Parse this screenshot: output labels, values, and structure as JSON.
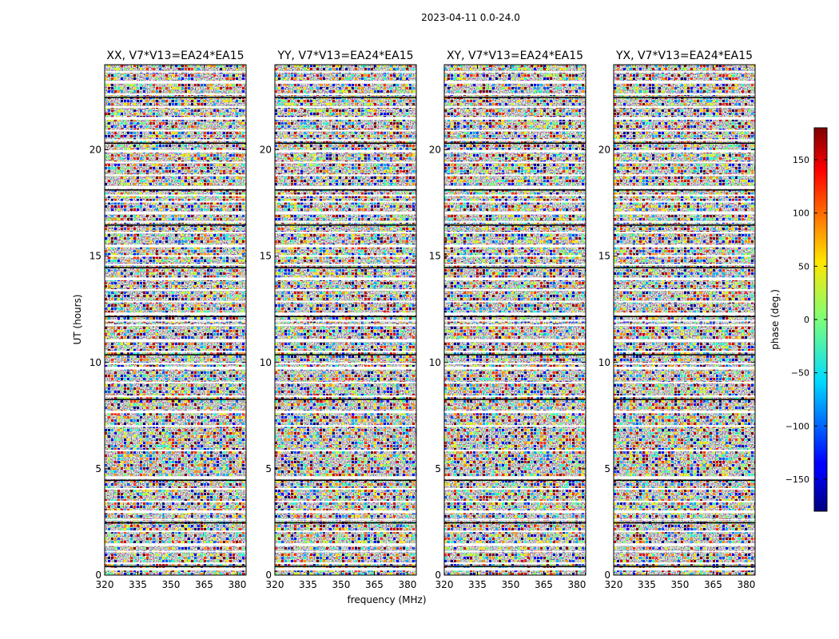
{
  "chart_data": {
    "type": "heatmap",
    "title": "2023-04-11 0.0-24.0",
    "xlabel": "frequency (MHz)",
    "ylabel": "UT (hours)",
    "xlim": [
      320,
      384
    ],
    "ylim": [
      0,
      24
    ],
    "x_ticks": [
      "320",
      "335",
      "350",
      "365",
      "380"
    ],
    "y_ticks": [
      "0",
      "5",
      "10",
      "15",
      "20"
    ],
    "panels": [
      {
        "title": "XX, V7*V13=EA24*EA15",
        "pol": "XX"
      },
      {
        "title": "YY, V7*V13=EA24*EA15",
        "pol": "YY"
      },
      {
        "title": "XY, V7*V13=EA24*EA15",
        "pol": "XY"
      },
      {
        "title": "YX, V7*V13=EA24*EA15",
        "pol": "YX"
      }
    ],
    "colorbar": {
      "label": "phase (deg.)",
      "range": [
        -180,
        180
      ],
      "ticks": [
        "150",
        "100",
        "50",
        "0",
        "−50",
        "−100",
        "−150"
      ],
      "colormap": "jet"
    },
    "flagged_ut_hours": [
      0.3,
      0.55,
      1.1,
      1.45,
      2.05,
      2.6,
      3.0,
      3.45,
      4.05,
      4.6,
      5.85,
      7.0,
      7.7,
      8.4,
      9.05,
      9.75,
      9.95,
      10.5,
      11.05,
      11.75,
      11.95,
      12.3,
      12.85,
      13.4,
      13.95,
      14.6,
      15.0,
      15.5,
      16.1,
      16.6,
      17.05,
      17.55,
      17.85,
      18.25,
      18.8,
      19.4,
      19.95,
      20.45,
      20.9,
      21.5,
      22.0,
      22.6,
      23.2,
      23.65
    ]
  }
}
